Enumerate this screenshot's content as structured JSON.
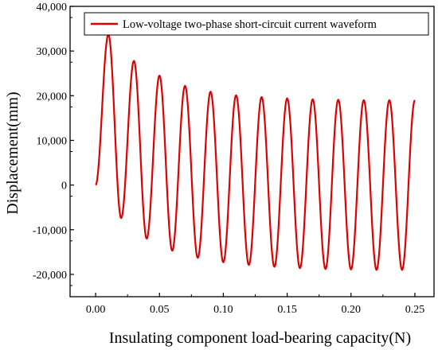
{
  "chart_data": {
    "type": "line",
    "title": "",
    "xlabel": "Insulating component load-bearing capacity(N)",
    "ylabel": "Displacement(mm)",
    "xlim": [
      -0.02,
      0.265
    ],
    "ylim": [
      -25000,
      40000
    ],
    "x_ticks": [
      "0.00",
      "0.05",
      "0.10",
      "0.15",
      "0.20",
      "0.25"
    ],
    "x_tick_values": [
      0.0,
      0.05,
      0.1,
      0.15,
      0.2,
      0.25
    ],
    "y_ticks": [
      "-20,000",
      "-10,000",
      "0",
      "10,000",
      "20,000",
      "30,000",
      "40,000"
    ],
    "y_tick_values": [
      -20000,
      -10000,
      0,
      10000,
      20000,
      30000,
      40000
    ],
    "grid": false,
    "legend_position": "top-right",
    "series": [
      {
        "name": "Low-voltage two-phase short-circuit current waveform",
        "color": "#e00000",
        "peaks": [
          {
            "x": 0.01,
            "y": 33700
          },
          {
            "x": 0.03,
            "y": 27800
          },
          {
            "x": 0.05,
            "y": 24500
          },
          {
            "x": 0.07,
            "y": 22200
          },
          {
            "x": 0.09,
            "y": 20900
          },
          {
            "x": 0.11,
            "y": 20100
          },
          {
            "x": 0.13,
            "y": 19700
          },
          {
            "x": 0.15,
            "y": 19400
          },
          {
            "x": 0.17,
            "y": 19200
          },
          {
            "x": 0.19,
            "y": 19100
          },
          {
            "x": 0.21,
            "y": 19000
          },
          {
            "x": 0.23,
            "y": 19000
          }
        ],
        "troughs": [
          {
            "x": 0.02,
            "y": -7400
          },
          {
            "x": 0.04,
            "y": -12000
          },
          {
            "x": 0.06,
            "y": -14700
          },
          {
            "x": 0.08,
            "y": -16300
          },
          {
            "x": 0.1,
            "y": -17300
          },
          {
            "x": 0.12,
            "y": -17900
          },
          {
            "x": 0.14,
            "y": -18300
          },
          {
            "x": 0.16,
            "y": -18600
          },
          {
            "x": 0.18,
            "y": -18800
          },
          {
            "x": 0.2,
            "y": -18900
          },
          {
            "x": 0.22,
            "y": -19000
          },
          {
            "x": 0.24,
            "y": -19000
          }
        ],
        "start": {
          "x": 0.0,
          "y": 0
        },
        "end": {
          "x": 0.25,
          "y": 19000
        }
      }
    ]
  }
}
